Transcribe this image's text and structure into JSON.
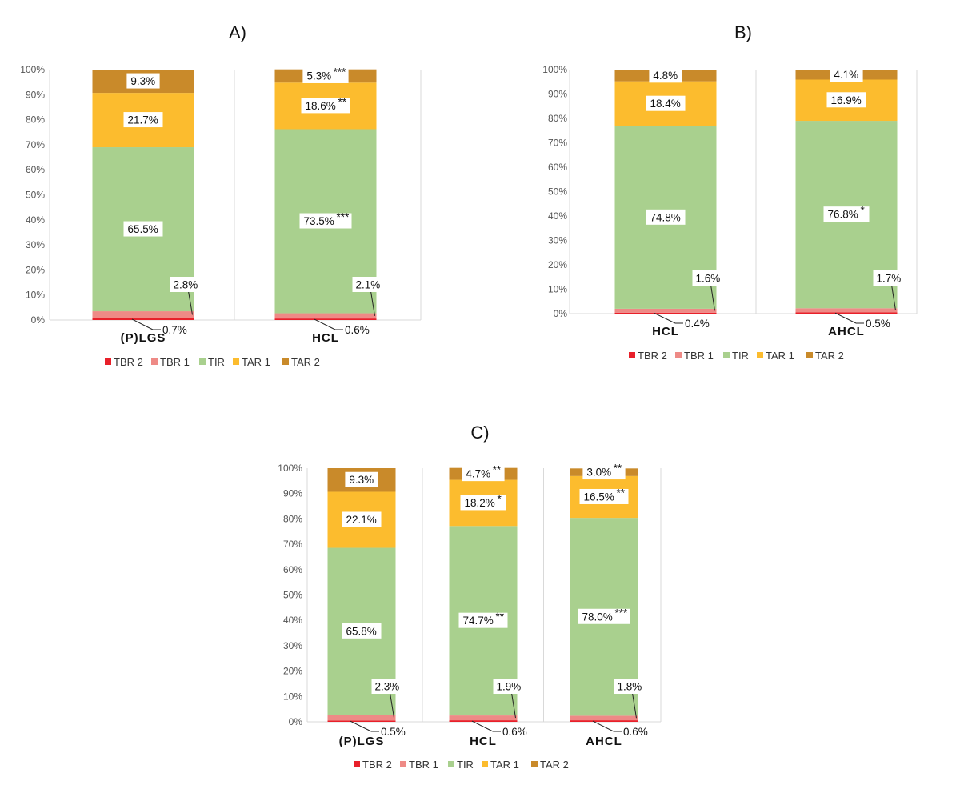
{
  "colors": {
    "TBR 2": "#e8202a",
    "TBR 1": "#ee8a86",
    "TIR": "#a9d08e",
    "TAR 1": "#fcbc2e",
    "TAR 2": "#c98a2a"
  },
  "chart_data": [
    {
      "type": "bar",
      "stacked": true,
      "title": "A)",
      "categories": [
        "(P)LGS",
        "HCL"
      ],
      "series": [
        {
          "name": "TBR 2",
          "values": [
            0.7,
            0.6
          ]
        },
        {
          "name": "TBR 1",
          "values": [
            2.8,
            2.1
          ]
        },
        {
          "name": "TIR",
          "values": [
            65.5,
            73.5
          ]
        },
        {
          "name": "TAR 1",
          "values": [
            21.7,
            18.6
          ]
        },
        {
          "name": "TAR 2",
          "values": [
            9.3,
            5.3
          ]
        }
      ],
      "labels": [
        {
          "TBR 2": "0.7%",
          "TBR 1": "2.8%",
          "TIR": "65.5%",
          "TAR 1": "21.7%",
          "TAR 2": "9.3%"
        },
        {
          "TBR 2": "0.6%",
          "TBR 1": "2.1%",
          "TIR": "73.5%",
          "TAR 1": "18.6%",
          "TAR 2": "5.3%"
        }
      ],
      "stars": [
        {},
        {
          "TIR": "***",
          "TAR 1": "**",
          "TAR 2": "***"
        }
      ],
      "yticks": [
        "0%",
        "10%",
        "20%",
        "30%",
        "40%",
        "50%",
        "60%",
        "70%",
        "80%",
        "90%",
        "100%"
      ],
      "ylim": [
        0,
        100
      ],
      "legend": [
        "TBR 2",
        "TBR 1",
        "TIR",
        "TAR 1",
        "TAR 2"
      ],
      "legend_position": "bottom"
    },
    {
      "type": "bar",
      "stacked": true,
      "title": "B)",
      "categories": [
        "HCL",
        "AHCL"
      ],
      "series": [
        {
          "name": "TBR 2",
          "values": [
            0.4,
            0.5
          ]
        },
        {
          "name": "TBR 1",
          "values": [
            1.6,
            1.7
          ]
        },
        {
          "name": "TIR",
          "values": [
            74.8,
            76.8
          ]
        },
        {
          "name": "TAR 1",
          "values": [
            18.4,
            16.9
          ]
        },
        {
          "name": "TAR 2",
          "values": [
            4.8,
            4.1
          ]
        }
      ],
      "labels": [
        {
          "TBR 2": "0.4%",
          "TBR 1": "1.6%",
          "TIR": "74.8%",
          "TAR 1": "18.4%",
          "TAR 2": "4.8%"
        },
        {
          "TBR 2": "0.5%",
          "TBR 1": "1.7%",
          "TIR": "76.8%",
          "TAR 1": "16.9%",
          "TAR 2": "4.1%"
        }
      ],
      "stars": [
        {},
        {
          "TIR": "*"
        }
      ],
      "yticks": [
        "0%",
        "10%",
        "20%",
        "30%",
        "40%",
        "50%",
        "60%",
        "70%",
        "80%",
        "90%",
        "100%"
      ],
      "ylim": [
        0,
        100
      ],
      "legend": [
        "TBR 2",
        "TBR 1",
        "TIR",
        "TAR 1",
        "TAR 2"
      ],
      "legend_position": "bottom"
    },
    {
      "type": "bar",
      "stacked": true,
      "title": "C)",
      "categories": [
        "(P)LGS",
        "HCL",
        "AHCL"
      ],
      "series": [
        {
          "name": "TBR 2",
          "values": [
            0.5,
            0.6,
            0.6
          ]
        },
        {
          "name": "TBR 1",
          "values": [
            2.3,
            1.9,
            1.8
          ]
        },
        {
          "name": "TIR",
          "values": [
            65.8,
            74.7,
            78.0
          ]
        },
        {
          "name": "TAR 1",
          "values": [
            22.1,
            18.2,
            16.5
          ]
        },
        {
          "name": "TAR 2",
          "values": [
            9.3,
            4.7,
            3.0
          ]
        }
      ],
      "labels": [
        {
          "TBR 2": "0.5%",
          "TBR 1": "2.3%",
          "TIR": "65.8%",
          "TAR 1": "22.1%",
          "TAR 2": "9.3%"
        },
        {
          "TBR 2": "0.6%",
          "TBR 1": "1.9%",
          "TIR": "74.7%",
          "TAR 1": "18.2%",
          "TAR 2": "4.7%"
        },
        {
          "TBR 2": "0.6%",
          "TBR 1": "1.8%",
          "TIR": "78.0%",
          "TAR 1": "16.5%",
          "TAR 2": "3.0%"
        }
      ],
      "stars": [
        {},
        {
          "TIR": "**",
          "TAR 1": "*",
          "TAR 2": "**"
        },
        {
          "TIR": "***",
          "TAR 1": "**",
          "TAR 2": "**"
        }
      ],
      "yticks": [
        "0%",
        "10%",
        "20%",
        "30%",
        "40%",
        "50%",
        "60%",
        "70%",
        "80%",
        "90%",
        "100%"
      ],
      "ylim": [
        0,
        100
      ],
      "legend": [
        "TBR 2",
        "TBR 1",
        "TIR",
        "TAR 1",
        "TAR 2"
      ],
      "legend_position": "bottom"
    }
  ]
}
